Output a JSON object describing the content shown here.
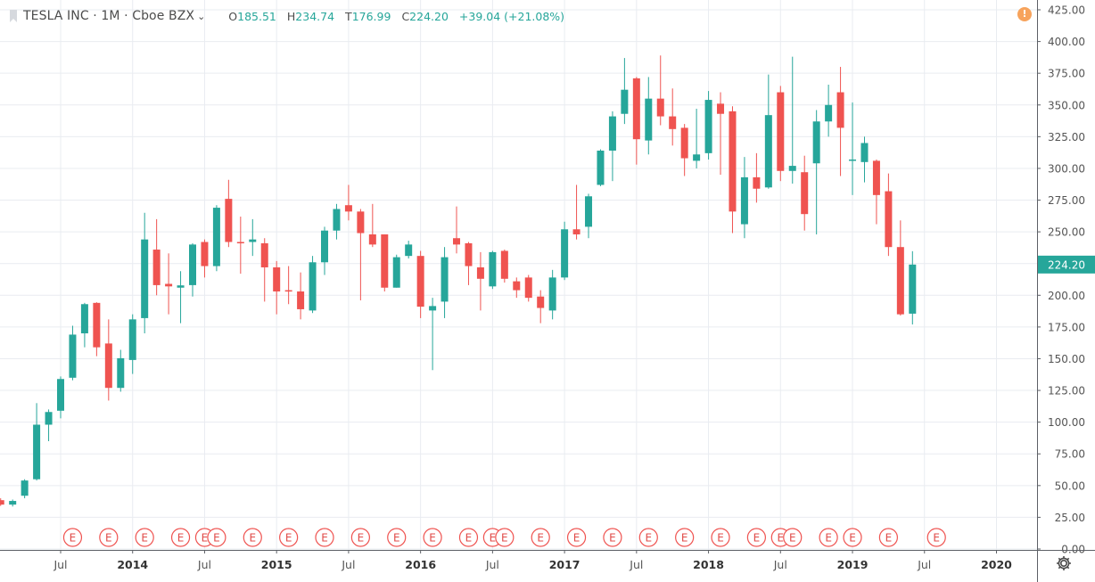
{
  "header": {
    "symbol": "TESLA INC · 1M · Cboe BZX",
    "open_label": "O",
    "open": "185.51",
    "high_label": "H",
    "high": "234.74",
    "low_label": "T",
    "low": "176.99",
    "close_label": "C",
    "close": "224.20",
    "change": "+39.04 (+21.08%)"
  },
  "colors": {
    "up": "#26a69a",
    "down": "#ef5350",
    "grid": "#e9ecf1",
    "axis_text": "#555555"
  },
  "chart_data": {
    "type": "candlestick",
    "title": "TESLA INC · 1M · Cboe BZX",
    "interval": "1M",
    "ylim": [
      0,
      425
    ],
    "y_ticks": [
      0,
      25,
      50,
      75,
      100,
      125,
      150,
      175,
      200,
      225,
      250,
      275,
      300,
      325,
      350,
      375,
      400,
      425
    ],
    "y_tick_labels": [
      "0.00",
      "25.00",
      "50.00",
      "75.00",
      "100.00",
      "125.00",
      "150.00",
      "175.00",
      "200.00",
      "225.00",
      "250.00",
      "275.00",
      "300.00",
      "325.00",
      "350.00",
      "375.00",
      "400.00",
      "425.00"
    ],
    "last_price_label": "224.20",
    "x_ticks": [
      {
        "month": "2013-07",
        "label": "Jul"
      },
      {
        "month": "2014-01",
        "label": "2014"
      },
      {
        "month": "2014-07",
        "label": "Jul"
      },
      {
        "month": "2015-01",
        "label": "2015"
      },
      {
        "month": "2015-07",
        "label": "Jul"
      },
      {
        "month": "2016-01",
        "label": "2016"
      },
      {
        "month": "2016-07",
        "label": "Jul"
      },
      {
        "month": "2017-01",
        "label": "2017"
      },
      {
        "month": "2017-07",
        "label": "Jul"
      },
      {
        "month": "2018-01",
        "label": "2018"
      },
      {
        "month": "2018-07",
        "label": "Jul"
      },
      {
        "month": "2019-01",
        "label": "2019"
      },
      {
        "month": "2019-07",
        "label": "Jul"
      },
      {
        "month": "2020-01",
        "label": "2020"
      }
    ],
    "earnings_label": "E",
    "earnings_months": [
      "2013-08",
      "2013-11",
      "2014-02",
      "2014-05",
      "2014-07",
      "2014-08",
      "2014-11",
      "2015-02",
      "2015-05",
      "2015-08",
      "2015-11",
      "2016-02",
      "2016-05",
      "2016-07",
      "2016-08",
      "2016-11",
      "2017-02",
      "2017-05",
      "2017-08",
      "2017-11",
      "2018-02",
      "2018-05",
      "2018-07",
      "2018-08",
      "2018-11",
      "2019-01",
      "2019-04",
      "2019-08"
    ],
    "candles": [
      {
        "month": "2013-02",
        "open": 38.5,
        "high": 40.0,
        "low": 34.0,
        "close": 35.0
      },
      {
        "month": "2013-03",
        "open": 35.0,
        "high": 39.0,
        "low": 33.5,
        "close": 37.9
      },
      {
        "month": "2013-04",
        "open": 42.0,
        "high": 55.0,
        "low": 40.0,
        "close": 54.0
      },
      {
        "month": "2013-05",
        "open": 55.0,
        "high": 115.0,
        "low": 54.0,
        "close": 98.0
      },
      {
        "month": "2013-06",
        "open": 98.0,
        "high": 110.0,
        "low": 85.0,
        "close": 108.0
      },
      {
        "month": "2013-07",
        "open": 109.0,
        "high": 136.0,
        "low": 103.0,
        "close": 134.0
      },
      {
        "month": "2013-08",
        "open": 135.0,
        "high": 176.0,
        "low": 133.0,
        "close": 169.0
      },
      {
        "month": "2013-09",
        "open": 170.0,
        "high": 194.0,
        "low": 159.0,
        "close": 193.0
      },
      {
        "month": "2013-10",
        "open": 194.0,
        "high": 194.5,
        "low": 152.0,
        "close": 159.0
      },
      {
        "month": "2013-11",
        "open": 162.0,
        "high": 181.0,
        "low": 117.0,
        "close": 127.0
      },
      {
        "month": "2013-12",
        "open": 127.0,
        "high": 157.0,
        "low": 124.0,
        "close": 150.4
      },
      {
        "month": "2014-01",
        "open": 149.0,
        "high": 185.0,
        "low": 138.0,
        "close": 181.0
      },
      {
        "month": "2014-02",
        "open": 182.0,
        "high": 265.0,
        "low": 170.0,
        "close": 244.0
      },
      {
        "month": "2014-03",
        "open": 236.0,
        "high": 260.0,
        "low": 200.0,
        "close": 208.0
      },
      {
        "month": "2014-04",
        "open": 209.0,
        "high": 233.0,
        "low": 185.0,
        "close": 207.0
      },
      {
        "month": "2014-05",
        "open": 206.0,
        "high": 219.0,
        "low": 178.0,
        "close": 207.8
      },
      {
        "month": "2014-06",
        "open": 208.0,
        "high": 241.0,
        "low": 199.0,
        "close": 240.0
      },
      {
        "month": "2014-07",
        "open": 242.0,
        "high": 244.0,
        "low": 214.0,
        "close": 223.0
      },
      {
        "month": "2014-08",
        "open": 223.0,
        "high": 271.0,
        "low": 219.0,
        "close": 269.0
      },
      {
        "month": "2014-09",
        "open": 276.0,
        "high": 291.0,
        "low": 238.0,
        "close": 242.0
      },
      {
        "month": "2014-10",
        "open": 242.0,
        "high": 262.0,
        "low": 217.0,
        "close": 241.0
      },
      {
        "month": "2014-11",
        "open": 242.0,
        "high": 260.0,
        "low": 231.0,
        "close": 244.0
      },
      {
        "month": "2014-12",
        "open": 241.0,
        "high": 245.0,
        "low": 195.0,
        "close": 222.0
      },
      {
        "month": "2015-01",
        "open": 222.0,
        "high": 227.0,
        "low": 185.0,
        "close": 203.0
      },
      {
        "month": "2015-02",
        "open": 204.0,
        "high": 223.0,
        "low": 193.0,
        "close": 203.0
      },
      {
        "month": "2015-03",
        "open": 203.0,
        "high": 218.0,
        "low": 181.0,
        "close": 189.0
      },
      {
        "month": "2015-04",
        "open": 188.0,
        "high": 231.0,
        "low": 186.0,
        "close": 226.0
      },
      {
        "month": "2015-05",
        "open": 226.0,
        "high": 254.0,
        "low": 216.0,
        "close": 251.0
      },
      {
        "month": "2015-06",
        "open": 251.0,
        "high": 272.0,
        "low": 244.0,
        "close": 268.0
      },
      {
        "month": "2015-07",
        "open": 271.0,
        "high": 287.0,
        "low": 259.0,
        "close": 266.0
      },
      {
        "month": "2015-08",
        "open": 266.0,
        "high": 268.0,
        "low": 196.0,
        "close": 249.0
      },
      {
        "month": "2015-09",
        "open": 248.0,
        "high": 272.0,
        "low": 238.0,
        "close": 240.0
      },
      {
        "month": "2015-10",
        "open": 248.0,
        "high": 248.0,
        "low": 203.0,
        "close": 206.0
      },
      {
        "month": "2015-11",
        "open": 206.0,
        "high": 232.0,
        "low": 206.0,
        "close": 230.0
      },
      {
        "month": "2015-12",
        "open": 231.0,
        "high": 243.0,
        "low": 229.0,
        "close": 240.0
      },
      {
        "month": "2016-01",
        "open": 231.0,
        "high": 235.0,
        "low": 182.0,
        "close": 191.0
      },
      {
        "month": "2016-02",
        "open": 188.0,
        "high": 198.0,
        "low": 141.0,
        "close": 191.5
      },
      {
        "month": "2016-03",
        "open": 195.0,
        "high": 238.0,
        "low": 182.0,
        "close": 230.0
      },
      {
        "month": "2016-04",
        "open": 245.0,
        "high": 270.0,
        "low": 233.0,
        "close": 240.0
      },
      {
        "month": "2016-05",
        "open": 241.0,
        "high": 242.0,
        "low": 208.0,
        "close": 223.0
      },
      {
        "month": "2016-06",
        "open": 222.0,
        "high": 234.0,
        "low": 188.0,
        "close": 213.0
      },
      {
        "month": "2016-07",
        "open": 207.0,
        "high": 235.0,
        "low": 205.0,
        "close": 234.0
      },
      {
        "month": "2016-08",
        "open": 235.0,
        "high": 236.0,
        "low": 210.0,
        "close": 213.0
      },
      {
        "month": "2016-09",
        "open": 211.0,
        "high": 214.0,
        "low": 198.0,
        "close": 204.0
      },
      {
        "month": "2016-10",
        "open": 214.0,
        "high": 216.0,
        "low": 195.0,
        "close": 198.0
      },
      {
        "month": "2016-11",
        "open": 199.0,
        "high": 204.0,
        "low": 178.0,
        "close": 190.0
      },
      {
        "month": "2016-12",
        "open": 188.0,
        "high": 220.0,
        "low": 181.0,
        "close": 214.0
      },
      {
        "month": "2017-01",
        "open": 214.0,
        "high": 258.0,
        "low": 212.0,
        "close": 252.0
      },
      {
        "month": "2017-02",
        "open": 252.0,
        "high": 287.0,
        "low": 244.0,
        "close": 248.0
      },
      {
        "month": "2017-03",
        "open": 254.0,
        "high": 280.0,
        "low": 245.0,
        "close": 278.0
      },
      {
        "month": "2017-04",
        "open": 287.0,
        "high": 315.0,
        "low": 286.0,
        "close": 314.0
      },
      {
        "month": "2017-05",
        "open": 314.0,
        "high": 345.0,
        "low": 290.0,
        "close": 341.0
      },
      {
        "month": "2017-06",
        "open": 343.0,
        "high": 387.0,
        "low": 335.0,
        "close": 362.0
      },
      {
        "month": "2017-07",
        "open": 371.0,
        "high": 372.0,
        "low": 303.0,
        "close": 323.0
      },
      {
        "month": "2017-08",
        "open": 322.0,
        "high": 372.0,
        "low": 311.0,
        "close": 355.0
      },
      {
        "month": "2017-09",
        "open": 355.0,
        "high": 389.0,
        "low": 334.0,
        "close": 341.0
      },
      {
        "month": "2017-10",
        "open": 341.0,
        "high": 363.0,
        "low": 318.0,
        "close": 331.0
      },
      {
        "month": "2017-11",
        "open": 332.0,
        "high": 335.0,
        "low": 294.0,
        "close": 308.0
      },
      {
        "month": "2017-12",
        "open": 306.0,
        "high": 347.0,
        "low": 300.0,
        "close": 311.0
      },
      {
        "month": "2018-01",
        "open": 312.0,
        "high": 361.0,
        "low": 307.0,
        "close": 354.0
      },
      {
        "month": "2018-02",
        "open": 351.0,
        "high": 360.0,
        "low": 295.0,
        "close": 343.0
      },
      {
        "month": "2018-03",
        "open": 345.0,
        "high": 349.0,
        "low": 249.0,
        "close": 266.0
      },
      {
        "month": "2018-04",
        "open": 256.0,
        "high": 309.0,
        "low": 245.0,
        "close": 293.0
      },
      {
        "month": "2018-05",
        "open": 293.0,
        "high": 312.0,
        "low": 273.0,
        "close": 284.0
      },
      {
        "month": "2018-06",
        "open": 285.0,
        "high": 374.0,
        "low": 284.0,
        "close": 342.0
      },
      {
        "month": "2018-07",
        "open": 360.0,
        "high": 365.0,
        "low": 290.0,
        "close": 298.0
      },
      {
        "month": "2018-08",
        "open": 298.0,
        "high": 388.0,
        "low": 288.0,
        "close": 302.0
      },
      {
        "month": "2018-09",
        "open": 297.0,
        "high": 310.0,
        "low": 251.0,
        "close": 264.0
      },
      {
        "month": "2018-10",
        "open": 304.0,
        "high": 346.0,
        "low": 248.0,
        "close": 337.0
      },
      {
        "month": "2018-11",
        "open": 337.0,
        "high": 366.0,
        "low": 325.0,
        "close": 350.0
      },
      {
        "month": "2018-12",
        "open": 360.0,
        "high": 380.0,
        "low": 294.0,
        "close": 332.0
      },
      {
        "month": "2019-01",
        "open": 306.0,
        "high": 352.0,
        "low": 279.0,
        "close": 307.0
      },
      {
        "month": "2019-02",
        "open": 305.0,
        "high": 325.0,
        "low": 289.0,
        "close": 320.0
      },
      {
        "month": "2019-03",
        "open": 306.0,
        "high": 307.0,
        "low": 256.0,
        "close": 279.0
      },
      {
        "month": "2019-04",
        "open": 282.0,
        "high": 296.0,
        "low": 231.0,
        "close": 238.0
      },
      {
        "month": "2019-05",
        "open": 238.0,
        "high": 259.0,
        "low": 184.0,
        "close": 185.0
      },
      {
        "month": "2019-06",
        "open": 185.51,
        "high": 234.74,
        "low": 176.99,
        "close": 224.2
      }
    ]
  }
}
